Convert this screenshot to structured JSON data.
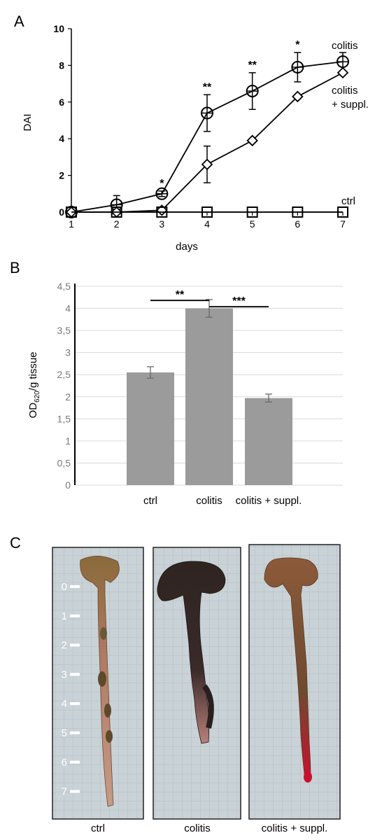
{
  "panels": {
    "a": "A",
    "b": "B",
    "c": "C"
  },
  "chart_data": [
    {
      "type": "line",
      "ylabel": "DAI",
      "xlabel": "days",
      "x": [
        1,
        2,
        3,
        4,
        5,
        6,
        7
      ],
      "xlim": [
        1,
        7
      ],
      "ylim": [
        0,
        10
      ],
      "yticks": [
        0,
        2,
        4,
        6,
        8,
        10
      ],
      "series": [
        {
          "name": "colitis",
          "marker": "circle",
          "values": [
            0,
            0.4,
            1.0,
            5.4,
            6.6,
            7.9,
            8.2
          ],
          "errors": [
            0,
            0.5,
            0.15,
            1.0,
            1.0,
            0.8,
            0.5
          ]
        },
        {
          "name": "colitis\n+ suppl.",
          "name_lines": [
            "colitis",
            "+ suppl."
          ],
          "marker": "diamond",
          "values": [
            0,
            0,
            0.1,
            2.6,
            3.9,
            6.3,
            7.6
          ],
          "errors": [
            0,
            0,
            0,
            1.0,
            0,
            0,
            0
          ]
        },
        {
          "name": "ctrl",
          "marker": "square",
          "values": [
            0,
            0,
            0,
            0,
            0,
            0,
            0
          ],
          "errors": [
            0,
            0,
            0,
            0,
            0,
            0,
            0
          ]
        }
      ],
      "annotations": [
        {
          "x": 3,
          "text": "*"
        },
        {
          "x": 4,
          "text": "**"
        },
        {
          "x": 5,
          "text": "**"
        },
        {
          "x": 6,
          "text": "*"
        }
      ]
    },
    {
      "type": "bar",
      "ylabel_main": "OD",
      "ylabel_sub": "620",
      "ylabel_rest": "/g tissue",
      "categories": [
        "ctrl",
        "colitis",
        "colitis + suppl."
      ],
      "values": [
        2.55,
        4.0,
        1.97
      ],
      "errors": [
        0.13,
        0.2,
        0.09
      ],
      "ylim": [
        0,
        4.5
      ],
      "ytick_labels": [
        "0",
        "0,5",
        "1",
        "1,5",
        "2",
        "2,5",
        "3",
        "3,5",
        "4",
        "4,5"
      ],
      "grid": true,
      "bar_color": "#9b9b9b",
      "significance": [
        {
          "from": 0,
          "to": 1,
          "text": "**"
        },
        {
          "from": 1,
          "to": 2,
          "text": "***"
        }
      ]
    }
  ],
  "photos": {
    "ruler_labels": [
      "0",
      "1",
      "2",
      "3",
      "4",
      "5",
      "6",
      "7"
    ],
    "captions": [
      "ctrl",
      "colitis",
      "colitis + suppl."
    ]
  }
}
